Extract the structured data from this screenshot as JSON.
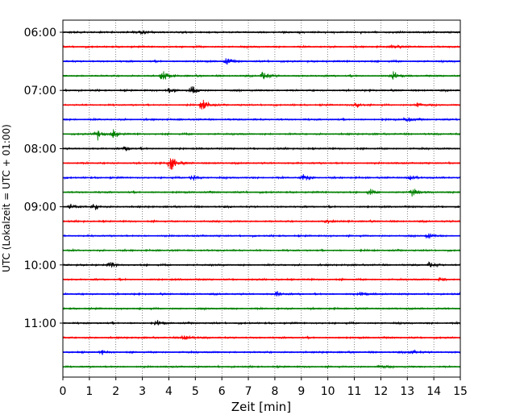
{
  "chart_data": {
    "type": "line",
    "title": "",
    "xlabel": "Zeit  [min]",
    "ylabel": "UTC (Lokalzeit = UTC + 01:00)",
    "xlim": [
      0,
      15
    ],
    "x_ticks": [
      0,
      1,
      2,
      3,
      4,
      5,
      6,
      7,
      8,
      9,
      10,
      11,
      12,
      13,
      14,
      15
    ],
    "x_grid": true,
    "y_grid": false,
    "y_tick_labels": [
      "06:00",
      "07:00",
      "08:00",
      "09:00",
      "10:00",
      "11:00"
    ],
    "trace_start": "06:00",
    "trace_interval_min": 15,
    "trace_count": 24,
    "color_cycle": [
      "#000000",
      "#ff0000",
      "#0000ff",
      "#008000"
    ],
    "events": [
      {
        "trace": 0,
        "t": 3.0,
        "amp": 0.45
      },
      {
        "trace": 1,
        "t": 12.5,
        "amp": 0.35
      },
      {
        "trace": 2,
        "t": 6.2,
        "amp": 0.55
      },
      {
        "trace": 3,
        "t": 3.8,
        "amp": 0.9
      },
      {
        "trace": 3,
        "t": 7.6,
        "amp": 0.8
      },
      {
        "trace": 3,
        "t": 12.5,
        "amp": 0.6
      },
      {
        "trace": 4,
        "t": 4.0,
        "amp": 0.45
      },
      {
        "trace": 4,
        "t": 4.9,
        "amp": 0.6
      },
      {
        "trace": 5,
        "t": 5.3,
        "amp": 0.95
      },
      {
        "trace": 5,
        "t": 11.1,
        "amp": 0.45
      },
      {
        "trace": 5,
        "t": 13.4,
        "amp": 0.4
      },
      {
        "trace": 6,
        "t": 13.0,
        "amp": 0.4
      },
      {
        "trace": 7,
        "t": 1.3,
        "amp": 0.75
      },
      {
        "trace": 7,
        "t": 1.9,
        "amp": 0.7
      },
      {
        "trace": 8,
        "t": 2.4,
        "amp": 0.35
      },
      {
        "trace": 9,
        "t": 4.1,
        "amp": 1.4
      },
      {
        "trace": 10,
        "t": 4.9,
        "amp": 0.55
      },
      {
        "trace": 10,
        "t": 9.1,
        "amp": 0.8
      },
      {
        "trace": 10,
        "t": 13.1,
        "amp": 0.5
      },
      {
        "trace": 11,
        "t": 13.2,
        "amp": 0.7
      },
      {
        "trace": 11,
        "t": 11.6,
        "amp": 0.4
      },
      {
        "trace": 12,
        "t": 0.3,
        "amp": 0.5
      },
      {
        "trace": 12,
        "t": 1.2,
        "amp": 0.45
      },
      {
        "trace": 13,
        "t": 10.0,
        "amp": 0.3
      },
      {
        "trace": 14,
        "t": 13.8,
        "amp": 0.45
      },
      {
        "trace": 16,
        "t": 1.8,
        "amp": 0.45
      },
      {
        "trace": 16,
        "t": 13.9,
        "amp": 0.5
      },
      {
        "trace": 17,
        "t": 14.3,
        "amp": 0.35
      },
      {
        "trace": 18,
        "t": 8.1,
        "amp": 0.4
      },
      {
        "trace": 18,
        "t": 11.3,
        "amp": 0.35
      },
      {
        "trace": 20,
        "t": 3.6,
        "amp": 0.35
      },
      {
        "trace": 21,
        "t": 4.6,
        "amp": 0.6
      },
      {
        "trace": 22,
        "t": 1.5,
        "amp": 0.3
      },
      {
        "trace": 22,
        "t": 13.2,
        "amp": 0.35
      },
      {
        "trace": 23,
        "t": 12.0,
        "amp": 0.3
      }
    ]
  }
}
